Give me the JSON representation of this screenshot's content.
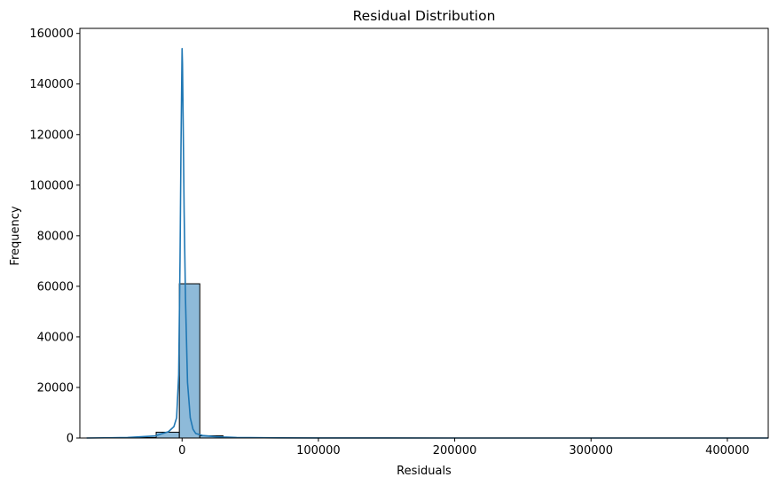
{
  "chart_data": {
    "type": "histogram",
    "title": "Residual Distribution",
    "xlabel": "Residuals",
    "ylabel": "Frequency",
    "xlim": [
      -75000,
      430000
    ],
    "ylim": [
      0,
      162000
    ],
    "x_ticks": [
      0,
      100000,
      200000,
      300000,
      400000
    ],
    "x_tick_labels": [
      "0",
      "100000",
      "200000",
      "300000",
      "400000"
    ],
    "y_ticks": [
      0,
      20000,
      40000,
      60000,
      80000,
      100000,
      120000,
      140000,
      160000
    ],
    "y_tick_labels": [
      "0",
      "20000",
      "40000",
      "60000",
      "80000",
      "100000",
      "120000",
      "140000",
      "160000"
    ],
    "bins": [
      {
        "x0": -70000,
        "x1": -53000,
        "count": 10
      },
      {
        "x0": -53000,
        "x1": -36000,
        "count": 30
      },
      {
        "x0": -36000,
        "x1": -19000,
        "count": 200
      },
      {
        "x0": -19000,
        "x1": -2000,
        "count": 2300
      },
      {
        "x0": -2000,
        "x1": 13000,
        "count": 61000
      },
      {
        "x0": 13000,
        "x1": 30000,
        "count": 900
      },
      {
        "x0": 30000,
        "x1": 47000,
        "count": 150
      },
      {
        "x0": 47000,
        "x1": 64000,
        "count": 50
      },
      {
        "x0": 64000,
        "x1": 81000,
        "count": 20
      }
    ],
    "kde": {
      "x": [
        -70000,
        -40000,
        -20000,
        -10000,
        -6000,
        -4000,
        -2500,
        -1500,
        -800,
        -300,
        0,
        300,
        800,
        1500,
        2500,
        4000,
        6000,
        8000,
        10000,
        15000,
        25000,
        40000,
        70000,
        100000,
        150000,
        200000,
        300000,
        400000,
        430000
      ],
      "y": [
        0,
        200,
        800,
        2500,
        4500,
        8000,
        25000,
        70000,
        115000,
        140000,
        154000,
        148000,
        125000,
        90000,
        55000,
        22000,
        8000,
        3500,
        1800,
        1000,
        500,
        200,
        80,
        30,
        10,
        5,
        2,
        1,
        0
      ]
    },
    "colors": {
      "bar_fill": "#8ebad9",
      "bar_edge": "#000000",
      "kde_line": "#1f77b4"
    }
  }
}
